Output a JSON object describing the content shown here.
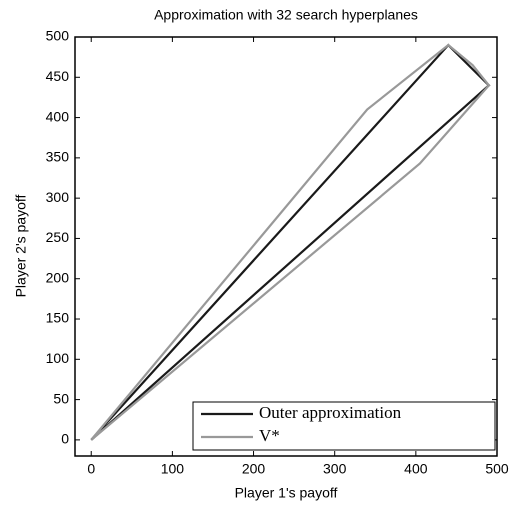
{
  "chart_data": {
    "type": "line",
    "title": "Approximation with 32 search hyperplanes",
    "xlabel": "Player 1's payoff",
    "ylabel": "Player 2's payoff",
    "xlim": [
      -20,
      500
    ],
    "ylim": [
      -20,
      500
    ],
    "xticks": [
      0,
      100,
      200,
      300,
      400,
      500
    ],
    "yticks": [
      0,
      50,
      100,
      150,
      200,
      250,
      300,
      350,
      400,
      450,
      500
    ],
    "legend": "lower right",
    "series": [
      {
        "name": "Outer approximation",
        "color": "#1a1a1a",
        "x": [
          0,
          440,
          490,
          0
        ],
        "values": [
          0,
          490,
          440,
          0
        ]
      },
      {
        "name": "V*",
        "color": "#999999",
        "x": [
          0,
          340,
          440,
          470,
          490,
          405,
          0
        ],
        "values": [
          0,
          410,
          490,
          465,
          440,
          343,
          0
        ]
      }
    ]
  }
}
